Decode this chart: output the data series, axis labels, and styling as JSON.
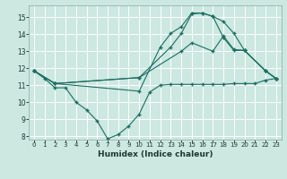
{
  "xlabel": "Humidex (Indice chaleur)",
  "background_color": "#cce8e0",
  "grid_color": "#ffffff",
  "line_color": "#1a6e62",
  "xlim": [
    -0.5,
    23.5
  ],
  "ylim": [
    7.8,
    15.7
  ],
  "yticks": [
    8,
    9,
    10,
    11,
    12,
    13,
    14,
    15
  ],
  "xticks": [
    0,
    1,
    2,
    3,
    4,
    5,
    6,
    7,
    8,
    9,
    10,
    11,
    12,
    13,
    14,
    15,
    16,
    17,
    18,
    19,
    20,
    21,
    22,
    23
  ],
  "line1_x": [
    0,
    1,
    2,
    3,
    4,
    5,
    6,
    7,
    8,
    9,
    10,
    11,
    12,
    13,
    14,
    15,
    16,
    17,
    18,
    19,
    20,
    21,
    22,
    23
  ],
  "line1_y": [
    11.85,
    11.4,
    10.85,
    10.85,
    10.0,
    9.55,
    8.9,
    7.85,
    8.1,
    8.6,
    9.3,
    10.6,
    11.0,
    11.05,
    11.05,
    11.05,
    11.05,
    11.05,
    11.05,
    11.1,
    11.1,
    11.1,
    11.3,
    11.4
  ],
  "line2_x": [
    0,
    2,
    10,
    14,
    15,
    17,
    18,
    19,
    20,
    22,
    23
  ],
  "line2_y": [
    11.85,
    11.1,
    11.45,
    13.0,
    13.5,
    13.0,
    13.9,
    13.1,
    13.05,
    11.85,
    11.4
  ],
  "line3_x": [
    0,
    2,
    10,
    13,
    14,
    15,
    16,
    17,
    18,
    19,
    20,
    22,
    23
  ],
  "line3_y": [
    11.85,
    11.1,
    11.45,
    13.25,
    14.05,
    15.2,
    15.25,
    15.05,
    14.75,
    14.05,
    13.05,
    11.85,
    11.4
  ],
  "line4_x": [
    0,
    2,
    10,
    12,
    13,
    14,
    15,
    16,
    17,
    18,
    19,
    20,
    22,
    23
  ],
  "line4_y": [
    11.85,
    11.1,
    10.65,
    13.25,
    14.05,
    14.45,
    15.25,
    15.25,
    15.05,
    13.8,
    13.05,
    13.05,
    11.85,
    11.4
  ]
}
